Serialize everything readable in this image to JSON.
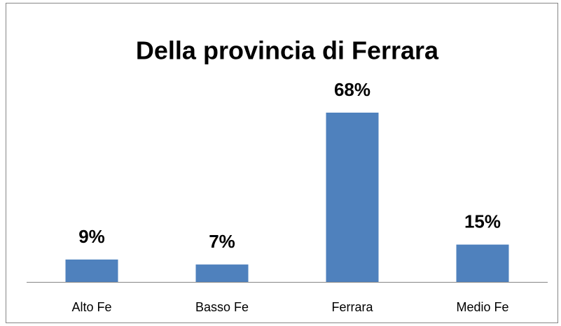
{
  "chart_data": {
    "type": "bar",
    "title": "Della provincia di Ferrara",
    "categories": [
      "Alto Fe",
      "Basso Fe",
      "Ferrara",
      "Medio Fe"
    ],
    "values": [
      9,
      7,
      68,
      15
    ],
    "value_labels": [
      "9%",
      "7%",
      "68%",
      "15%"
    ],
    "color": "#4f81bd"
  }
}
